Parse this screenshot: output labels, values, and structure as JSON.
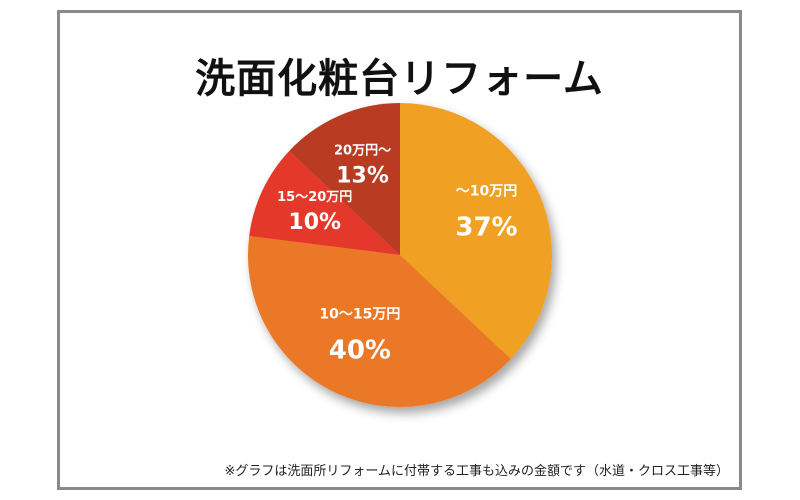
{
  "title": "洗面化粧台リフォーム",
  "note": "※グラフは洗面所リフォームに付帯する工事も込みの金額です（水道・クロス工事等）",
  "chart_data": {
    "type": "pie",
    "title": "洗面化粧台リフォーム",
    "slices": [
      {
        "label": "〜10万円",
        "value": 37,
        "value_label": "37%",
        "color": "#f0a020"
      },
      {
        "label": "10〜15万円",
        "value": 40,
        "value_label": "40%",
        "color": "#ea7826"
      },
      {
        "label": "15〜20万円",
        "value": 10,
        "value_label": "10%",
        "color": "#e3372a"
      },
      {
        "label": "20万円〜",
        "value": 13,
        "value_label": "13%",
        "color": "#b83a24"
      }
    ],
    "start": "12 o'clock",
    "direction": "clockwise",
    "legend": "none",
    "labels": "inside slices"
  }
}
